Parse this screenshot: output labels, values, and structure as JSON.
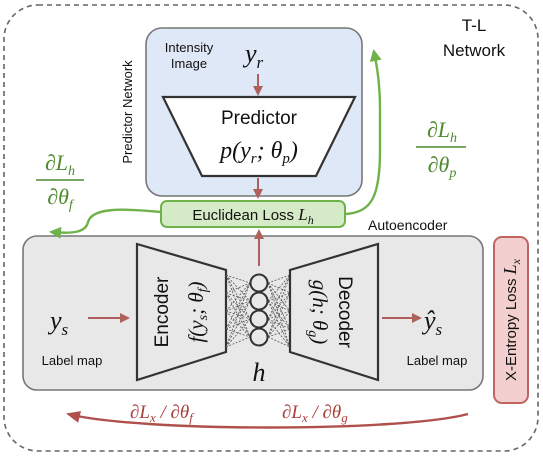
{
  "network_title_line1": "T-L",
  "network_title_line2": "Network",
  "predictor_network_label": "Predictor Network",
  "intensity_image_line1": "Intensity",
  "intensity_image_line2": "Image",
  "y_r": "y",
  "y_r_sub": "r",
  "predictor_title": "Predictor",
  "predictor_func": "p(y",
  "predictor_func_sub": "r",
  "predictor_func_rest": "; θ",
  "predictor_func_sub2": "p",
  "predictor_func_close": ")",
  "euclidean_loss_label": "Euclidean Loss",
  "euclidean_loss_symbol": "L",
  "euclidean_loss_sub": "h",
  "autoencoder_label": "Autoencoder",
  "grad_h_f_num": "∂L",
  "grad_h_f_num_sub": "h",
  "grad_h_f_den": "∂θ",
  "grad_h_f_den_sub": "f",
  "grad_h_p_num": "∂L",
  "grad_h_p_num_sub": "h",
  "grad_h_p_den": "∂θ",
  "grad_h_p_den_sub": "p",
  "y_s": "y",
  "y_s_sub": "s",
  "label_map_in": "Label map",
  "encoder_title": "Encoder",
  "encoder_func": "f(y",
  "encoder_func_sub": "s",
  "encoder_func_rest": "; θ",
  "encoder_func_sub2": "f",
  "encoder_func_close": ")",
  "decoder_title": "Decoder",
  "decoder_func": "g(h; θ",
  "decoder_func_sub": "g",
  "decoder_func_close": ")",
  "latent_h": "h",
  "y_hat_s": "ŷ",
  "y_hat_s_sub": "s",
  "label_map_out": "Label map",
  "xentropy_label": "X-Entropy Loss",
  "xentropy_symbol": "L",
  "xentropy_sub": "x",
  "grad_x_f": "∂L",
  "grad_x_f_sub": "x",
  "grad_x_f_rest": " / ∂θ",
  "grad_x_f_sub2": "f",
  "grad_x_g": "∂L",
  "grad_x_g_sub": "x",
  "grad_x_g_rest": " / ∂θ",
  "grad_x_g_sub2": "g",
  "colors": {
    "predictor_box": "#dfe8f7",
    "autoencoder_box": "#e8e8e8",
    "loss_green": "#d5ebc7",
    "green": "#6fb24a",
    "red_arrow": "#b0605c",
    "xentropy_box": "#f3d0cf"
  }
}
